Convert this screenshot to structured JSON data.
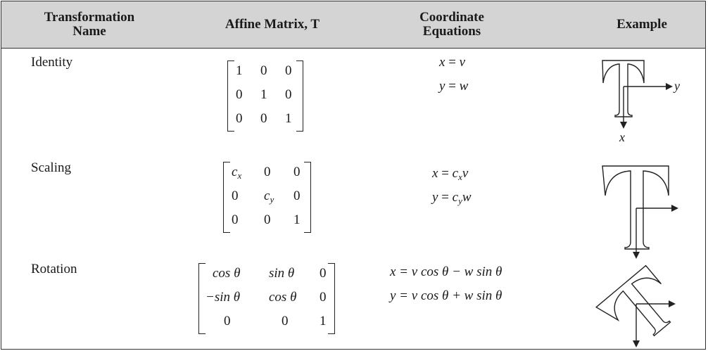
{
  "headers": {
    "name_line1": "Transformation",
    "name_line2": "Name",
    "matrix": "Affine Matrix, T",
    "coord_line1": "Coordinate",
    "coord_line2": "Equations",
    "example": "Example"
  },
  "rows": [
    {
      "name": "Identity",
      "matrix": [
        [
          "1",
          "0",
          "0"
        ],
        [
          "0",
          "1",
          "0"
        ],
        [
          "0",
          "0",
          "1"
        ]
      ],
      "eq1": {
        "lhs": "x",
        "op": "=",
        "rhs": "v"
      },
      "eq2": {
        "lhs": "y",
        "op": "=",
        "rhs": "w"
      },
      "axis_x": "x",
      "axis_y": "y"
    },
    {
      "name": "Scaling",
      "matrix": [
        [
          "c",
          "0",
          "0"
        ],
        [
          "0",
          "c",
          "0"
        ],
        [
          "0",
          "0",
          "1"
        ]
      ],
      "subs": {
        "cx": "x",
        "cy": "y"
      },
      "eq1": {
        "lhs": "x",
        "op": "=",
        "c": "c",
        "sub": "x",
        "var": "v"
      },
      "eq2": {
        "lhs": "y",
        "op": "=",
        "c": "c",
        "sub": "y",
        "var": "w"
      }
    },
    {
      "name": "Rotation",
      "matrix": [
        [
          "cos θ",
          "sin θ",
          "0"
        ],
        [
          "−sin θ",
          "cos θ",
          "0"
        ],
        [
          "0",
          "0",
          "1"
        ]
      ],
      "eq1": "x = v cos θ − w sin θ",
      "eq2": "y = v cos θ + w sin θ"
    }
  ],
  "colors": {
    "header_bg": "#d4d4d4",
    "line": "#222222"
  }
}
